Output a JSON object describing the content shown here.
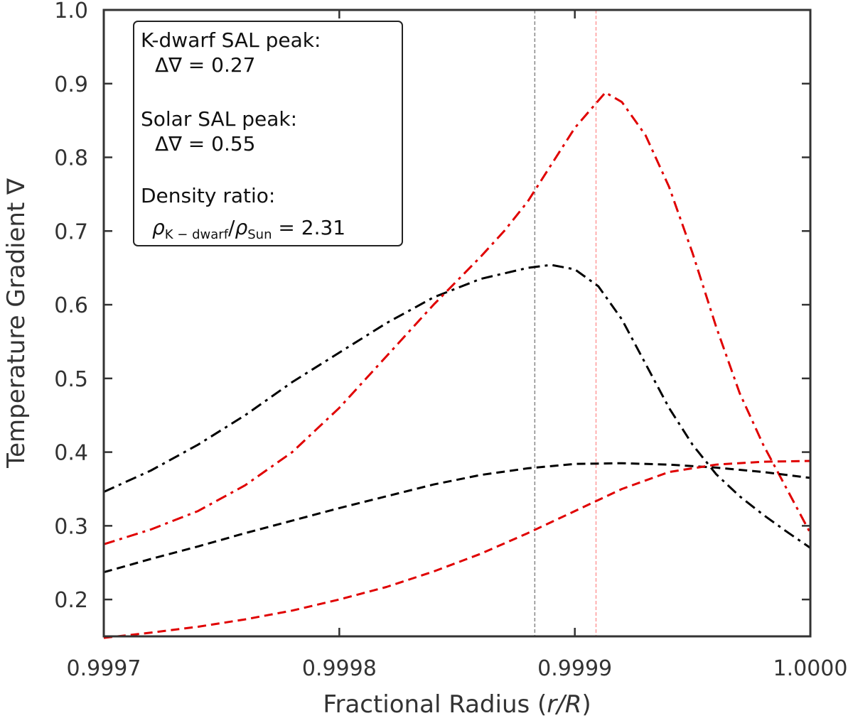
{
  "chart_data": {
    "type": "line",
    "title": "",
    "xlabel_prefix": "Fractional Radius (",
    "xlabel_var": "r/R",
    "xlabel_suffix": ")",
    "ylabel": "Temperature Gradient ∇",
    "xlim": [
      0.9997,
      1.0
    ],
    "ylim": [
      0.15,
      1.0
    ],
    "xticks": [
      0.9997,
      0.9998,
      0.9999,
      1.0
    ],
    "xtick_labels": [
      "0.9997",
      "0.9998",
      "0.9999",
      "1.0000"
    ],
    "yticks": [
      0.2,
      0.3,
      0.4,
      0.5,
      0.6,
      0.7,
      0.8,
      0.9,
      1.0
    ],
    "ytick_labels": [
      "0.2",
      "0.3",
      "0.4",
      "0.5",
      "0.6",
      "0.7",
      "0.8",
      "0.9",
      "1.0"
    ],
    "grid": false,
    "vertical_lines": [
      {
        "name": "kdwarf-peak-marker",
        "x": 0.999883,
        "color": "#888888"
      },
      {
        "name": "solar-peak-marker",
        "x": 0.999909,
        "color": "#ff9a9a"
      }
    ],
    "series": [
      {
        "name": "kdwarf-dashdot",
        "color": "#000000",
        "style": "dashdot",
        "x": [
          0.9997,
          0.99972,
          0.99974,
          0.99976,
          0.99978,
          0.9998,
          0.99982,
          0.99984,
          0.99986,
          0.99988,
          0.99989,
          0.9999,
          0.99991,
          0.99992,
          0.99993,
          0.99994,
          0.99995,
          0.99996,
          0.99997,
          0.99998,
          0.99999,
          1.0
        ],
        "values": [
          0.346,
          0.375,
          0.41,
          0.45,
          0.495,
          0.535,
          0.575,
          0.61,
          0.635,
          0.65,
          0.654,
          0.648,
          0.625,
          0.58,
          0.52,
          0.46,
          0.41,
          0.37,
          0.34,
          0.315,
          0.292,
          0.27
        ]
      },
      {
        "name": "solar-dashdot",
        "color": "#e00000",
        "style": "dashdot",
        "x": [
          0.9997,
          0.99972,
          0.99974,
          0.99976,
          0.99978,
          0.9998,
          0.99982,
          0.99984,
          0.99986,
          0.99987,
          0.99988,
          0.99989,
          0.9999,
          0.999913,
          0.99992,
          0.99993,
          0.99994,
          0.99995,
          0.99996,
          0.99997,
          0.99998,
          0.99999,
          1.0
        ],
        "values": [
          0.275,
          0.295,
          0.32,
          0.355,
          0.4,
          0.46,
          0.53,
          0.6,
          0.665,
          0.7,
          0.74,
          0.79,
          0.84,
          0.888,
          0.875,
          0.83,
          0.76,
          0.67,
          0.57,
          0.48,
          0.41,
          0.35,
          0.29
        ]
      },
      {
        "name": "kdwarf-dashed",
        "color": "#000000",
        "style": "dashed",
        "x": [
          0.9997,
          0.99972,
          0.99974,
          0.99976,
          0.99978,
          0.9998,
          0.99982,
          0.99984,
          0.99986,
          0.99988,
          0.9999,
          0.99992,
          0.99994,
          0.99996,
          0.99998,
          1.0
        ],
        "values": [
          0.237,
          0.255,
          0.272,
          0.29,
          0.307,
          0.324,
          0.34,
          0.356,
          0.369,
          0.378,
          0.384,
          0.385,
          0.383,
          0.379,
          0.373,
          0.365
        ]
      },
      {
        "name": "solar-dashed",
        "color": "#e00000",
        "style": "dashed",
        "x": [
          0.9997,
          0.99972,
          0.99974,
          0.99976,
          0.99978,
          0.9998,
          0.99982,
          0.99984,
          0.99986,
          0.99988,
          0.9999,
          0.99992,
          0.99994,
          0.99996,
          0.99998,
          1.0
        ],
        "values": [
          0.148,
          0.155,
          0.163,
          0.173,
          0.185,
          0.2,
          0.217,
          0.238,
          0.262,
          0.29,
          0.32,
          0.35,
          0.373,
          0.383,
          0.387,
          0.388
        ]
      }
    ],
    "annotation_box": {
      "kdwarf_label": "K-dwarf SAL peak:",
      "kdwarf_value": "Δ∇ = 0.27",
      "solar_label": "Solar SAL peak:",
      "solar_value": "Δ∇ = 0.55",
      "density_label": "Density ratio:",
      "density_rho": "ρ",
      "density_sub1": "K − dwarf",
      "density_slash": "/",
      "density_sub2": "Sun",
      "density_value": " = 2.31"
    }
  }
}
